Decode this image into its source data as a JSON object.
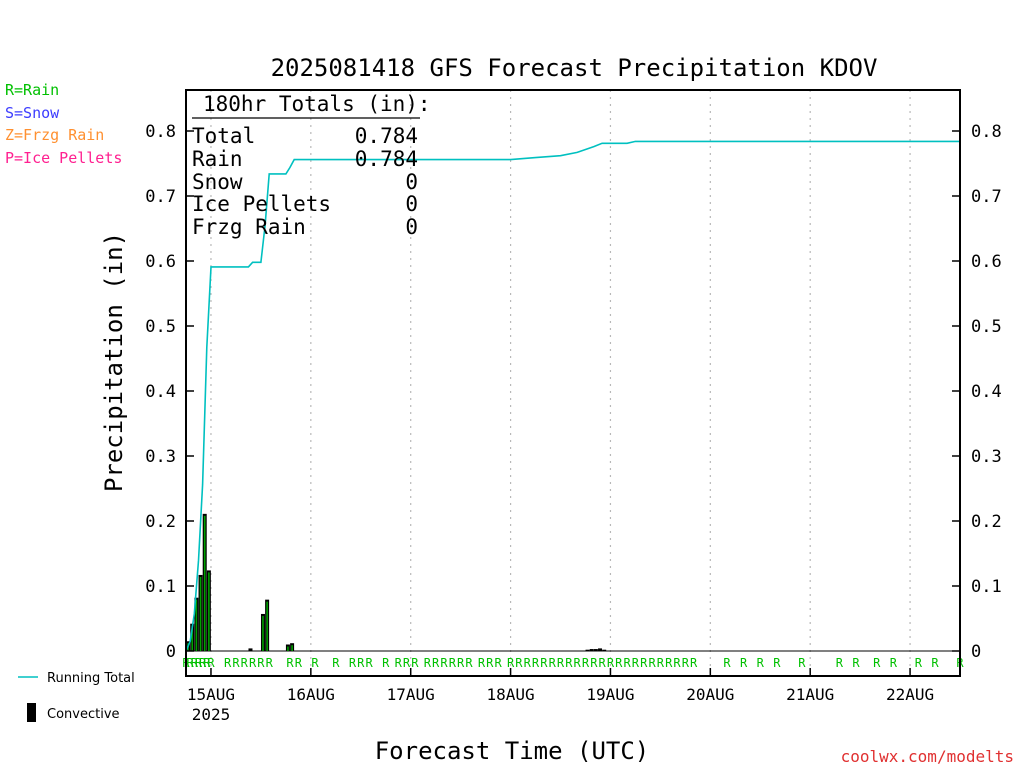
{
  "chart_data": {
    "type": "bar",
    "title": "2025081418 GFS Forecast Precipitation KDOV",
    "ylabel": "Precipitation (in)",
    "xlabel": "Forecast Time (UTC)",
    "ylim": [
      0,
      0.86
    ],
    "yticks": [
      "0",
      "0.1",
      "0.2",
      "0.3",
      "0.4",
      "0.5",
      "0.6",
      "0.7",
      "0.8"
    ],
    "ytick_values": [
      0,
      0.1,
      0.2,
      0.3,
      0.4,
      0.5,
      0.6,
      0.7,
      0.8
    ],
    "x_hours_range": [
      -6,
      180
    ],
    "x_ticks": [
      {
        "label": "15AUG",
        "hour": 0
      },
      {
        "label": "16AUG",
        "hour": 24
      },
      {
        "label": "17AUG",
        "hour": 48
      },
      {
        "label": "18AUG",
        "hour": 72
      },
      {
        "label": "19AUG",
        "hour": 96
      },
      {
        "label": "20AUG",
        "hour": 120
      },
      {
        "label": "21AUG",
        "hour": 144
      },
      {
        "label": "22AUG",
        "hour": 168
      }
    ],
    "year_label": "2025",
    "grid": "vertical-dotted",
    "series": [
      {
        "name": "Convective",
        "type": "bar",
        "color": "#000000",
        "points": [
          {
            "hour": -5,
            "value": 0.015
          },
          {
            "hour": -4,
            "value": 0.042
          },
          {
            "hour": -3,
            "value": 0.082
          },
          {
            "hour": -2,
            "value": 0.117
          },
          {
            "hour": -1,
            "value": 0.211
          },
          {
            "hour": 0,
            "value": 0.124
          },
          {
            "hour": 10,
            "value": 0.004
          },
          {
            "hour": 13,
            "value": 0.057
          },
          {
            "hour": 14,
            "value": 0.079
          },
          {
            "hour": 19,
            "value": 0.01
          },
          {
            "hour": 20,
            "value": 0.012
          },
          {
            "hour": 91,
            "value": 0.002
          },
          {
            "hour": 92,
            "value": 0.003
          },
          {
            "hour": 93,
            "value": 0.003
          },
          {
            "hour": 94,
            "value": 0.004
          },
          {
            "hour": 95,
            "value": 0.002
          }
        ]
      },
      {
        "name": "Running Total",
        "type": "line",
        "color": "#00c0c0",
        "points": [
          [
            -6,
            0.0
          ],
          [
            -5,
            0.015
          ],
          [
            -4,
            0.057
          ],
          [
            -3,
            0.139
          ],
          [
            -2,
            0.256
          ],
          [
            -1,
            0.467
          ],
          [
            0,
            0.591
          ],
          [
            9,
            0.591
          ],
          [
            10,
            0.598
          ],
          [
            12,
            0.598
          ],
          [
            13,
            0.655
          ],
          [
            14,
            0.734
          ],
          [
            18,
            0.734
          ],
          [
            19,
            0.744
          ],
          [
            20,
            0.756
          ],
          [
            72,
            0.756
          ],
          [
            78,
            0.759
          ],
          [
            84,
            0.762
          ],
          [
            88,
            0.767
          ],
          [
            92,
            0.776
          ],
          [
            94,
            0.781
          ],
          [
            100,
            0.781
          ],
          [
            102,
            0.784
          ],
          [
            180,
            0.784
          ]
        ]
      }
    ],
    "ptype_markers": {
      "color": "#00c000",
      "letter": "R",
      "hours": [
        -6,
        -5,
        -4,
        -3,
        -2,
        -1,
        0,
        4,
        6,
        8,
        10,
        12,
        14,
        19,
        21,
        25,
        30,
        34,
        36,
        38,
        42,
        45,
        47,
        49,
        52,
        54,
        56,
        58,
        60,
        62,
        65,
        67,
        69,
        72,
        74,
        76,
        78,
        80,
        82,
        84,
        86,
        88,
        90,
        92,
        94,
        96,
        98,
        100,
        102,
        104,
        106,
        108,
        110,
        112,
        114,
        116,
        124,
        128,
        132,
        136,
        142,
        151,
        155,
        160,
        164,
        170,
        174,
        180
      ]
    }
  },
  "legend_ptype": [
    {
      "label": "R=Rain",
      "color": "#00c000"
    },
    {
      "label": "S=Snow",
      "color": "#3c3cff"
    },
    {
      "label": "Z=Frzg Rain",
      "color": "#ff9030"
    },
    {
      "label": "P=Ice Pellets",
      "color": "#ff2090"
    }
  ],
  "legend_bottom": {
    "running_total": "Running Total",
    "convective": "Convective"
  },
  "totals": {
    "title": "180hr Totals (in):",
    "rows": [
      {
        "label": "Total",
        "value": "0.784"
      },
      {
        "label": "Rain",
        "value": "0.784"
      },
      {
        "label": "Snow",
        "value": "0"
      },
      {
        "label": "Ice Pellets",
        "value": "0"
      },
      {
        "label": "Frzg Rain",
        "value": "0"
      }
    ]
  },
  "watermark": "coolwx.com/modelts",
  "colors": {
    "total_line": "#00c0c0",
    "bar": "#000000",
    "bar_inner": "#00a000",
    "rain_marker": "#00c000",
    "watermark": "#e03030"
  }
}
